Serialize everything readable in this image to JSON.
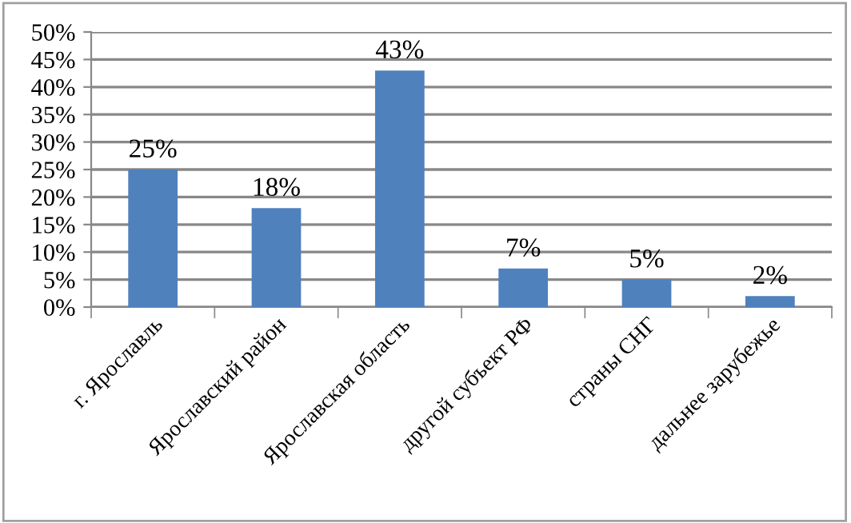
{
  "chart_data": {
    "type": "bar",
    "categories": [
      "г. Ярославль",
      "Ярославский район",
      "Ярославская область",
      "другой субъект РФ",
      "страны СНГ",
      "дальнее зарубежье"
    ],
    "values": [
      25,
      18,
      43,
      7,
      5,
      2
    ],
    "value_labels": [
      "25%",
      "18%",
      "43%",
      "7%",
      "5%",
      "2%"
    ],
    "color": "#4f81bd",
    "ylim": [
      0,
      50
    ],
    "yticks": [
      {
        "value": 0,
        "label": "0%"
      },
      {
        "value": 5,
        "label": "5%"
      },
      {
        "value": 10,
        "label": "10%"
      },
      {
        "value": 15,
        "label": "15%"
      },
      {
        "value": 20,
        "label": "20%"
      },
      {
        "value": 25,
        "label": "25%"
      },
      {
        "value": 30,
        "label": "30%"
      },
      {
        "value": 35,
        "label": "35%"
      },
      {
        "value": 40,
        "label": "40%"
      },
      {
        "value": 45,
        "label": "45%"
      },
      {
        "value": 50,
        "label": "50%"
      }
    ],
    "grid": "y",
    "legend": false
  }
}
